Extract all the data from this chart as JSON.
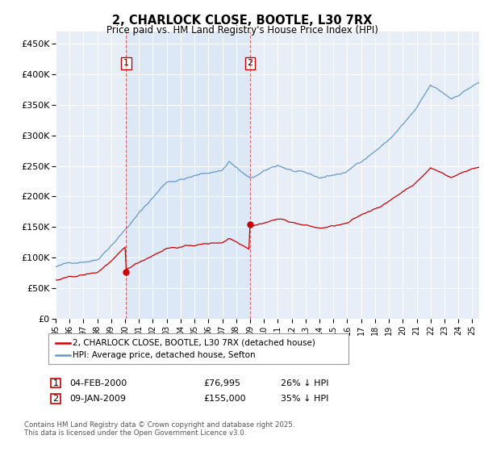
{
  "title": "2, CHARLOCK CLOSE, BOOTLE, L30 7RX",
  "subtitle": "Price paid vs. HM Land Registry's House Price Index (HPI)",
  "legend_line1": "2, CHARLOCK CLOSE, BOOTLE, L30 7RX (detached house)",
  "legend_line2": "HPI: Average price, detached house, Sefton",
  "annotation1_date": "04-FEB-2000",
  "annotation1_price": "£76,995",
  "annotation1_hpi": "26% ↓ HPI",
  "annotation2_date": "09-JAN-2009",
  "annotation2_price": "£155,000",
  "annotation2_hpi": "35% ↓ HPI",
  "footer": "Contains HM Land Registry data © Crown copyright and database right 2025.\nThis data is licensed under the Open Government Licence v3.0.",
  "red_color": "#cc0000",
  "blue_color": "#6699cc",
  "shade_color": "#dce8f5",
  "background_color": "#e8eef8",
  "ylim_max": 470000,
  "sale1_year": 2000.083,
  "sale1_price": 76995,
  "sale2_year": 2009.0,
  "sale2_price": 155000
}
